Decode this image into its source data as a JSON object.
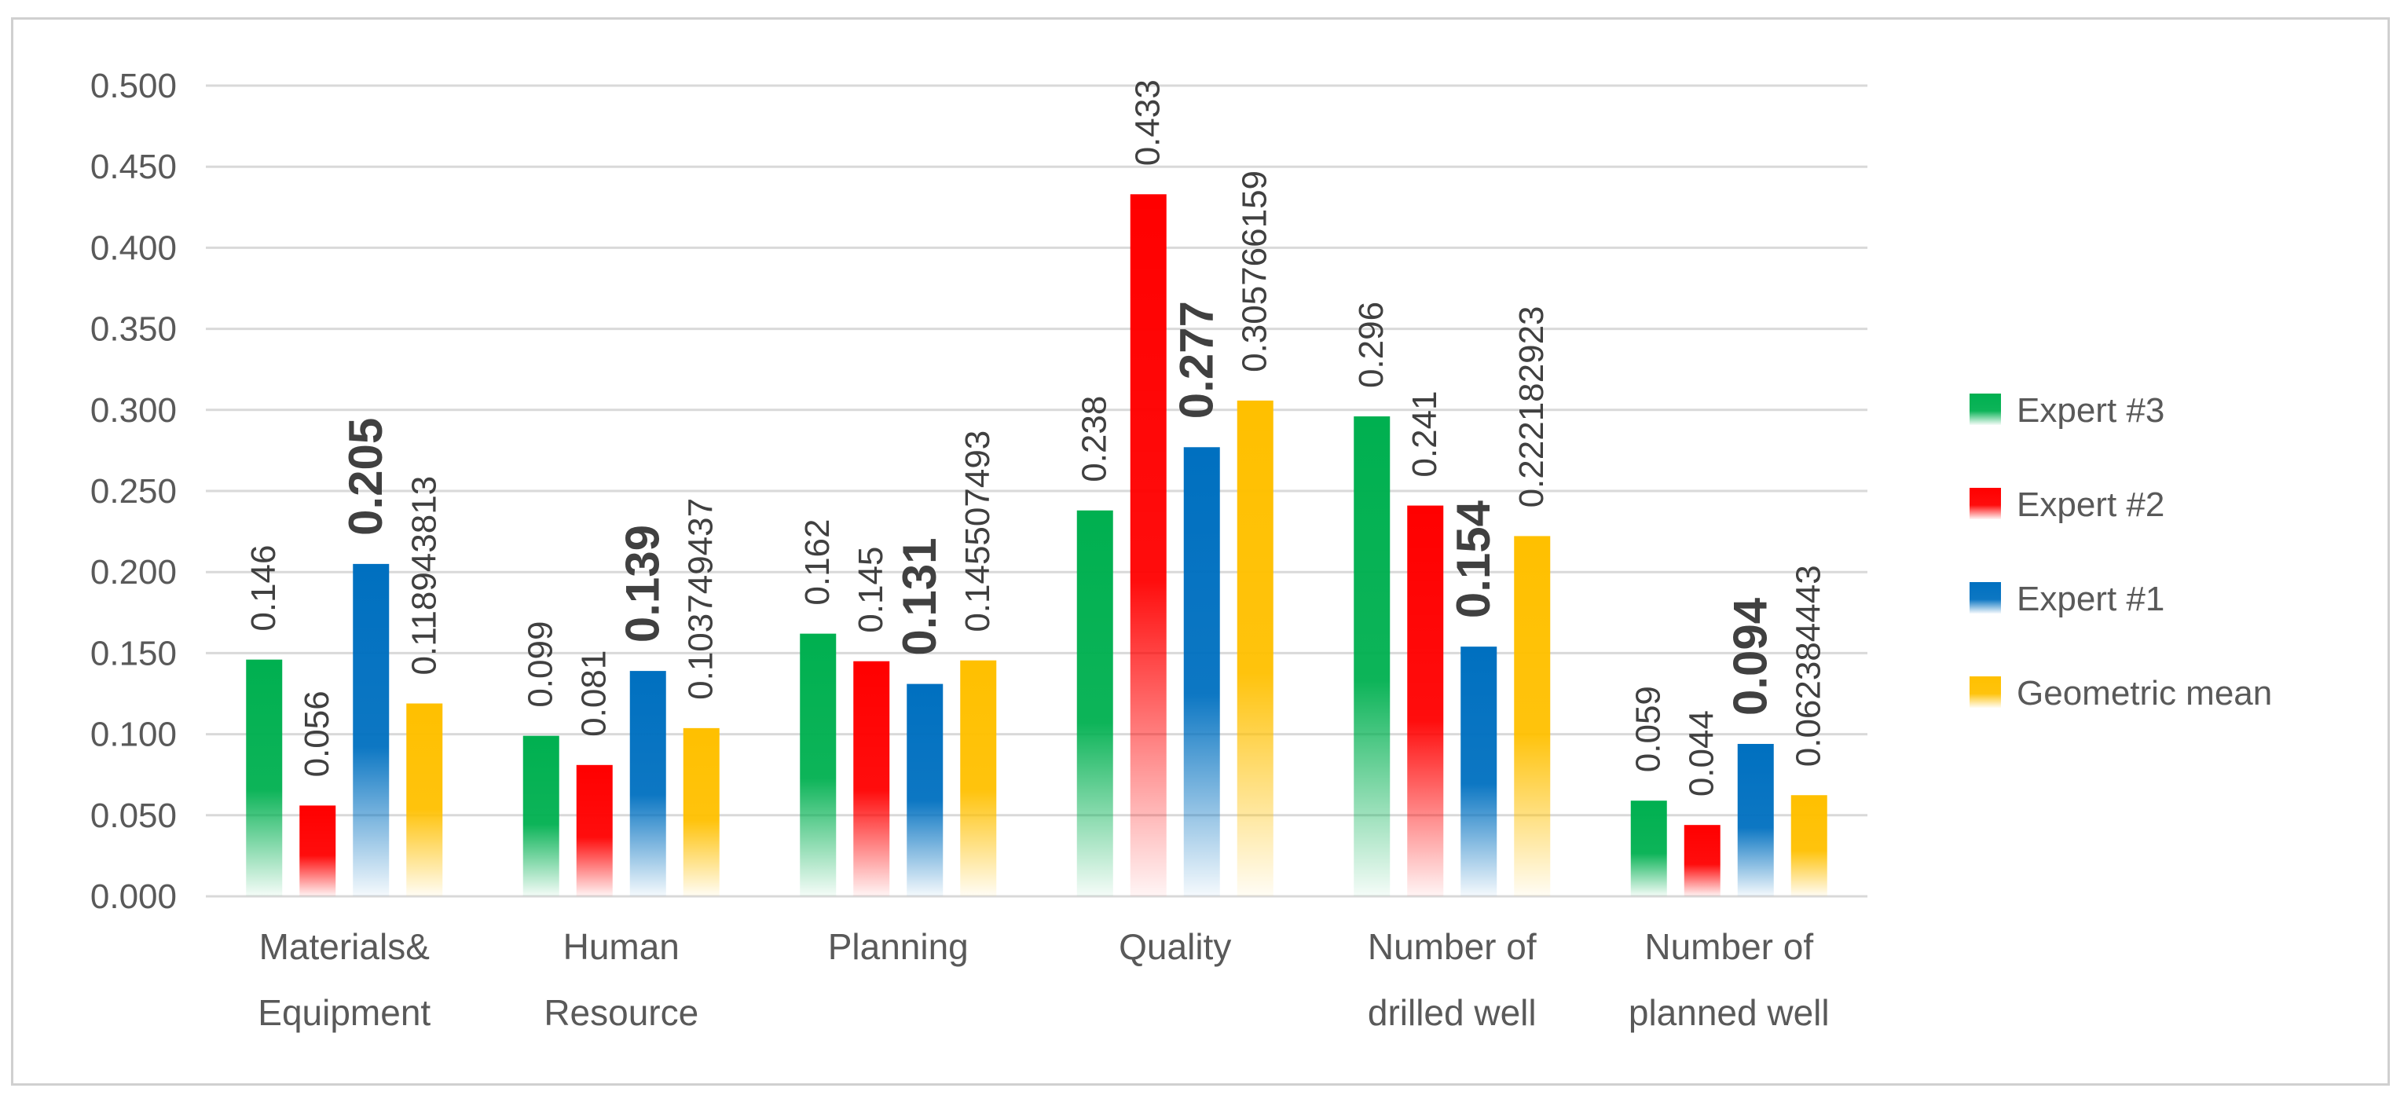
{
  "chart_data": {
    "type": "bar",
    "title": "",
    "xlabel": "",
    "ylabel": "",
    "ylim": [
      0,
      0.5
    ],
    "yticks": [
      "0.000",
      "0.050",
      "0.100",
      "0.150",
      "0.200",
      "0.250",
      "0.300",
      "0.350",
      "0.400",
      "0.450",
      "0.500"
    ],
    "categories": [
      [
        "Materials&",
        "Equipment"
      ],
      [
        "Human",
        "Resource"
      ],
      [
        "Planning"
      ],
      [
        "Quality"
      ],
      [
        "Number of",
        "drilled well"
      ],
      [
        "Number of",
        "planned well"
      ]
    ],
    "series": [
      {
        "name": "Expert #3",
        "color": "#00b050",
        "values": [
          0.146,
          0.099,
          0.162,
          0.238,
          0.296,
          0.059
        ],
        "labels": [
          "0.146",
          "0.099",
          "0.162",
          "0.238",
          "0.296",
          "0.059"
        ]
      },
      {
        "name": "Expert #2",
        "color": "#ff0000",
        "values": [
          0.056,
          0.081,
          0.145,
          0.433,
          0.241,
          0.044
        ],
        "labels": [
          "0.056",
          "0.081",
          "0.145",
          "0.433",
          "0.241",
          "0.044"
        ]
      },
      {
        "name": "Expert #1",
        "color": "#0070c0",
        "values": [
          0.205,
          0.139,
          0.131,
          0.277,
          0.154,
          0.094
        ],
        "labels": [
          "0.205",
          "0.139",
          "0.131",
          "0.277",
          "0.154",
          "0.094"
        ]
      },
      {
        "name": "Geometric mean",
        "color": "#ffc000",
        "values": [
          0.118943813,
          0.103749437,
          0.145507493,
          0.305766159,
          0.222182923,
          0.062384443
        ],
        "labels": [
          "0.118943813",
          "0.103749437",
          "0.145507493",
          "0.305766159",
          "0.222182923",
          "0.062384443"
        ]
      }
    ],
    "legend": {
      "position": "right",
      "order": [
        "Expert #3",
        "Expert #2",
        "Expert #1",
        "Geometric mean"
      ]
    },
    "grid": true
  }
}
